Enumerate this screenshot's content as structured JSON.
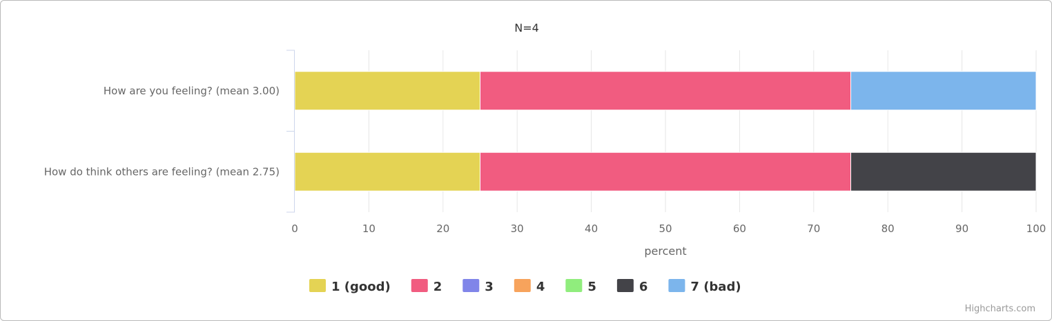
{
  "chart_data": {
    "type": "bar",
    "orientation": "horizontal",
    "stacking": "percent",
    "title": "N=4",
    "categories": [
      "How are you feeling? (mean 3.00)",
      "How do think others are feeling? (mean 2.75)"
    ],
    "series": [
      {
        "name": "1 (good)",
        "color": "#e4d354",
        "values": [
          25,
          25
        ]
      },
      {
        "name": "2",
        "color": "#f15c80",
        "values": [
          50,
          50
        ]
      },
      {
        "name": "3",
        "color": "#8085e9",
        "values": [
          0,
          0
        ]
      },
      {
        "name": "4",
        "color": "#f7a35c",
        "values": [
          0,
          0
        ]
      },
      {
        "name": "5",
        "color": "#90ed7d",
        "values": [
          0,
          0
        ]
      },
      {
        "name": "6",
        "color": "#434348",
        "values": [
          0,
          25
        ]
      },
      {
        "name": "7 (bad)",
        "color": "#7cb5ec",
        "values": [
          25,
          0
        ]
      }
    ],
    "xlabel": "percent",
    "xlim": [
      0,
      100
    ],
    "xticks": [
      0,
      10,
      20,
      30,
      40,
      50,
      60,
      70,
      80,
      90,
      100
    ],
    "grid": true,
    "legend": "bottom-center",
    "credits": "Highcharts.com"
  }
}
